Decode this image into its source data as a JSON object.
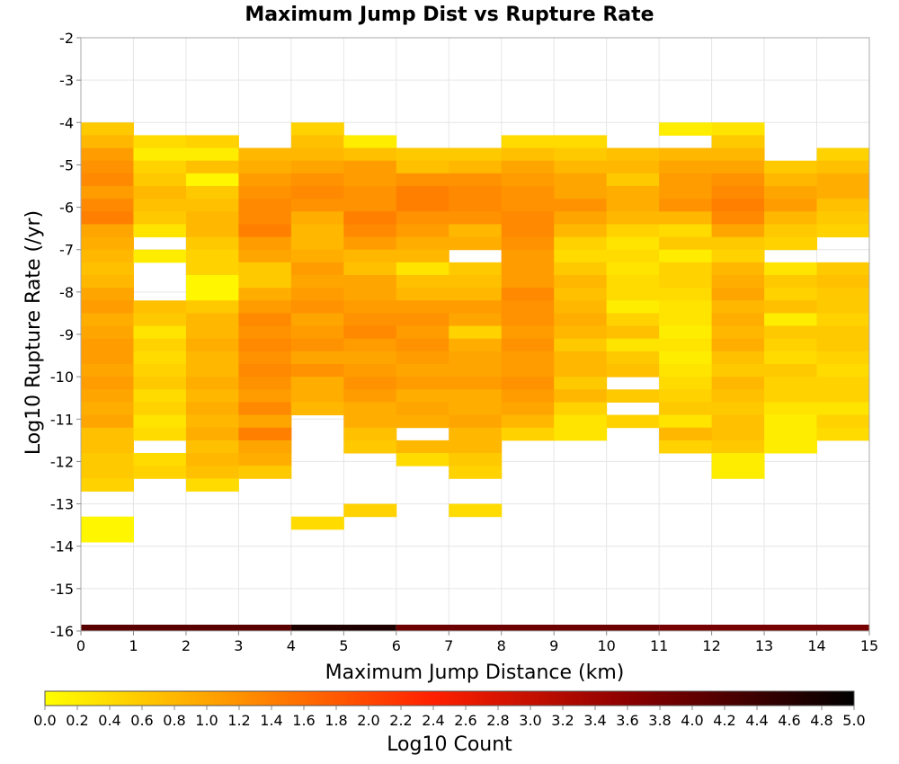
{
  "chart_data": {
    "type": "heatmap",
    "title": "Maximum Jump Dist vs Rupture Rate",
    "xlabel": "Maximum Jump Distance (km)",
    "ylabel": "Log10 Rupture Rate (/yr)",
    "xlim": [
      0,
      15
    ],
    "ylim": [
      -16,
      -2
    ],
    "x_ticks": [
      "0",
      "1",
      "2",
      "3",
      "4",
      "5",
      "6",
      "7",
      "8",
      "9",
      "10",
      "11",
      "12",
      "13",
      "14",
      "15"
    ],
    "y_ticks": [
      "-2",
      "-3",
      "-4",
      "-5",
      "-6",
      "-7",
      "-8",
      "-9",
      "-10",
      "-11",
      "-12",
      "-13",
      "-14",
      "-15",
      "-16"
    ],
    "x_bin_width": 1,
    "y_bin_height": 0.3,
    "grid": true,
    "colorbar": {
      "label": "Log10 Count",
      "range": [
        0,
        5
      ],
      "ticks": [
        "0.0",
        "0.2",
        "0.4",
        "0.6",
        "0.8",
        "1.0",
        "1.2",
        "1.4",
        "1.6",
        "1.8",
        "2.0",
        "2.2",
        "2.4",
        "2.6",
        "2.8",
        "3.0",
        "3.2",
        "3.4",
        "3.6",
        "3.8",
        "4.0",
        "4.2",
        "4.4",
        "4.6",
        "4.8",
        "5.0"
      ],
      "colors": [
        "#ffff00",
        "#ffa500",
        "#ff2000",
        "#8b0000",
        "#000000"
      ]
    },
    "columns": [
      {
        "x": 0,
        "top": -4.0,
        "values": [
          0.6,
          0.8,
          1.1,
          1.2,
          1.3,
          1.1,
          1.3,
          1.4,
          1.0,
          0.9,
          0.8,
          0.7,
          0.8,
          1.0,
          1.1,
          0.9,
          1.0,
          1.1,
          1.1,
          1.0,
          1.1,
          1.0,
          0.9,
          1.0,
          0.7,
          0.7,
          0.6,
          0.6,
          0.5,
          null,
          null,
          0.1,
          0.1
        ]
      },
      {
        "x": 1,
        "top": -4.3,
        "values": [
          0.4,
          0.2,
          0.5,
          0.6,
          0.8,
          0.7,
          0.6,
          0.3,
          null,
          0.2,
          null,
          null,
          null,
          0.7,
          0.6,
          0.3,
          0.5,
          0.4,
          0.5,
          0.6,
          0.4,
          0.5,
          0.3,
          0.4,
          null,
          0.4,
          0.5
        ]
      },
      {
        "x": 2,
        "top": -4.3,
        "values": [
          0.5,
          0.2,
          0.7,
          0.1,
          0.6,
          0.7,
          0.8,
          0.8,
          0.6,
          0.5,
          0.5,
          0.1,
          0.1,
          0.6,
          0.8,
          0.8,
          0.9,
          0.8,
          0.8,
          0.9,
          0.8,
          0.9,
          0.8,
          0.9,
          0.7,
          0.8,
          0.7,
          0.4
        ]
      },
      {
        "x": 3,
        "top": -4.6,
        "values": [
          0.8,
          0.9,
          1.1,
          1.2,
          1.3,
          1.3,
          1.4,
          1.1,
          1.0,
          0.6,
          0.6,
          0.9,
          1.1,
          1.3,
          1.2,
          1.3,
          1.2,
          1.3,
          1.2,
          1.1,
          1.3,
          1.0,
          1.4,
          1.0,
          0.9,
          0.6
        ]
      },
      {
        "x": 4,
        "top": -4.0,
        "values": [
          0.5,
          0.7,
          0.8,
          1.0,
          1.2,
          1.3,
          1.2,
          0.9,
          0.8,
          0.8,
          0.9,
          1.1,
          1.0,
          1.1,
          1.2,
          1.0,
          1.1,
          1.2,
          1.0,
          1.2,
          0.9,
          0.9,
          0.8,
          null,
          null,
          null,
          null,
          null,
          null,
          null,
          null,
          0.4
        ]
      },
      {
        "x": 5,
        "top": -4.3,
        "values": [
          0.2,
          0.7,
          1.1,
          1.1,
          1.2,
          1.2,
          1.4,
          1.3,
          1.1,
          0.8,
          0.7,
          1.0,
          1.0,
          1.1,
          1.2,
          1.3,
          1.1,
          1.0,
          1.1,
          1.2,
          1.1,
          0.9,
          0.9,
          0.7,
          0.6,
          null,
          null,
          null,
          null,
          0.5
        ]
      },
      {
        "x": 6,
        "top": -4.6,
        "values": [
          0.6,
          0.7,
          1.2,
          1.4,
          1.4,
          1.2,
          1.1,
          0.9,
          0.8,
          0.3,
          0.7,
          0.8,
          1.1,
          1.2,
          1.1,
          1.2,
          1.1,
          1.0,
          1.1,
          0.9,
          1.0,
          0.9,
          null,
          0.8,
          0.4
        ]
      },
      {
        "x": 7,
        "top": -4.6,
        "values": [
          0.6,
          0.8,
          1.2,
          1.3,
          1.3,
          1.2,
          0.8,
          0.9,
          null,
          0.6,
          0.7,
          0.8,
          1.1,
          1.0,
          0.5,
          0.9,
          1.0,
          1.0,
          1.1,
          0.9,
          0.9,
          1.0,
          0.8,
          0.8,
          0.6,
          0.5,
          null,
          null,
          0.4
        ]
      },
      {
        "x": 8,
        "top": -4.3,
        "values": [
          0.4,
          0.7,
          1.0,
          1.1,
          1.2,
          1.2,
          1.3,
          1.3,
          1.2,
          1.1,
          1.1,
          1.1,
          1.3,
          1.2,
          1.2,
          1.1,
          1.2,
          1.1,
          1.1,
          1.2,
          1.1,
          1.0,
          0.8,
          0.5
        ]
      },
      {
        "x": 9,
        "top": -4.3,
        "values": [
          0.4,
          0.6,
          0.8,
          1.0,
          1.0,
          1.2,
          1.0,
          0.8,
          0.5,
          0.4,
          0.6,
          0.8,
          0.7,
          0.8,
          0.9,
          0.8,
          0.6,
          0.8,
          0.8,
          0.6,
          0.8,
          0.5,
          0.3,
          0.3
        ]
      },
      {
        "x": 10,
        "top": -4.6,
        "values": [
          0.7,
          0.8,
          0.6,
          0.9,
          0.9,
          0.8,
          0.5,
          0.3,
          0.4,
          0.3,
          0.4,
          0.4,
          0.2,
          0.5,
          0.7,
          0.3,
          0.6,
          0.7,
          null,
          0.6,
          null,
          0.5
        ]
      },
      {
        "x": 11,
        "top": -4.0,
        "values": [
          0.2,
          null,
          0.8,
          1.0,
          1.1,
          1.1,
          1.2,
          0.8,
          0.4,
          0.6,
          0.2,
          0.5,
          0.5,
          0.4,
          0.3,
          0.3,
          0.2,
          0.3,
          0.2,
          0.3,
          0.4,
          0.5,
          0.6,
          0.3,
          0.8,
          0.5
        ]
      },
      {
        "x": 12,
        "top": -4.0,
        "values": [
          0.3,
          0.6,
          0.8,
          1.0,
          1.2,
          1.3,
          1.4,
          1.3,
          1.0,
          0.6,
          0.5,
          0.8,
          0.9,
          1.0,
          0.8,
          0.9,
          0.8,
          0.9,
          0.7,
          0.6,
          0.8,
          0.7,
          0.6,
          0.7,
          0.7,
          0.6,
          0.2,
          0.2
        ]
      },
      {
        "x": 13,
        "top": -4.9,
        "values": [
          0.6,
          0.8,
          1.0,
          1.1,
          0.8,
          0.6,
          0.5,
          null,
          0.3,
          0.6,
          0.5,
          0.7,
          0.2,
          0.6,
          0.5,
          0.4,
          0.6,
          0.5,
          0.5,
          0.3,
          0.2,
          0.2,
          0.2
        ]
      },
      {
        "x": 14,
        "top": -4.6,
        "values": [
          0.5,
          0.7,
          0.9,
          0.9,
          0.7,
          0.6,
          0.5,
          null,
          null,
          0.6,
          0.7,
          0.6,
          0.6,
          0.5,
          0.6,
          0.6,
          0.5,
          0.4,
          0.5,
          0.5,
          0.3,
          0.5,
          0.4
        ]
      }
    ],
    "bottom_row": {
      "y": -16,
      "segments": [
        {
          "x0": 0,
          "x1": 4,
          "value": 4.1
        },
        {
          "x0": 4,
          "x1": 6,
          "value": 4.7
        },
        {
          "x0": 6,
          "x1": 11,
          "value": 3.9
        },
        {
          "x0": 11,
          "x1": 15,
          "value": 3.8
        }
      ]
    }
  }
}
